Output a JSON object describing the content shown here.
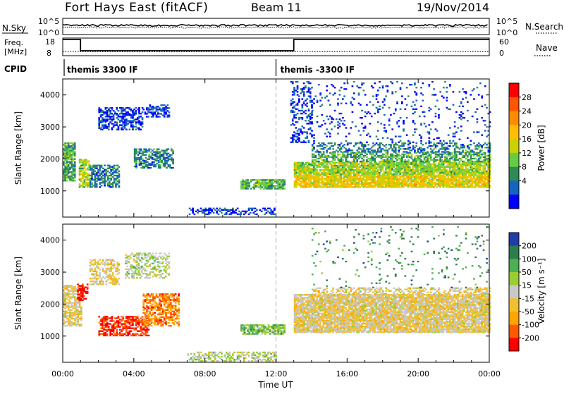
{
  "header": {
    "station": "Fort Hays East (fitACF)",
    "beam": "Beam 11",
    "date": "19/Nov/2014"
  },
  "chart_data": {
    "type": "heatmap",
    "x_tick_labels": [
      "00:00",
      "04:00",
      "08:00",
      "12:00",
      "16:00",
      "20:00",
      "00:00"
    ],
    "x_ticks_hours": [
      0,
      4,
      8,
      12,
      16,
      20,
      24
    ],
    "xlim_hours": [
      0,
      24
    ],
    "xlabel": "Time UT",
    "noise_panel": {
      "left_label": "N.Sky",
      "right_label": "N.Search",
      "left_ticks": [
        "10^5",
        "10^0"
      ],
      "right_ticks": [
        "10^5",
        "10^0"
      ]
    },
    "freq_panel": {
      "left_label_1": "Freq.",
      "left_label_2": "[MHz]",
      "right_label": "Nave",
      "left_ticks": [
        "18",
        "8"
      ],
      "right_ticks": [
        "60",
        "0"
      ],
      "ylim_freq": [
        8,
        18
      ],
      "ylim_nave": [
        0,
        60
      ],
      "freq_steps": [
        {
          "from_hr": 0.0,
          "to_hr": 1.0,
          "mhz": 17.2
        },
        {
          "from_hr": 1.0,
          "to_hr": 13.0,
          "mhz": 10.8
        },
        {
          "from_hr": 13.0,
          "to_hr": 24.0,
          "mhz": 17.2
        }
      ],
      "nave_level": 14
    },
    "cpid": {
      "label": "CPID",
      "segments": [
        {
          "start_hr": 0.0,
          "text": "themis 3300 IF"
        },
        {
          "start_hr": 12.0,
          "text": "themis -3300 IF"
        }
      ]
    },
    "power_panel": {
      "ylabel": "Slant Range [km]",
      "ylim": [
        180,
        4500
      ],
      "y_ticks": [
        1000,
        2000,
        3000,
        4000
      ],
      "colorbar_label": "Power [dB]",
      "colorbar_ticks": [
        "28",
        "24",
        "20",
        "16",
        "12",
        "8",
        "4"
      ],
      "colorbar_colors": [
        "#ff0000",
        "#ff5500",
        "#ff8c00",
        "#ffbf00",
        "#c8d200",
        "#66cc44",
        "#2e8b57",
        "#1565c0",
        "#0000ff"
      ]
    },
    "velocity_panel": {
      "ylabel": "Slant Range [km]",
      "ylim": [
        180,
        4500
      ],
      "y_ticks": [
        1000,
        2000,
        3000,
        4000
      ],
      "colorbar_label": "Velocity [m s⁻¹]",
      "colorbar_ticks": [
        "200",
        "100",
        "50",
        "15",
        "-15",
        "-50",
        "-100",
        "-200"
      ],
      "colorbar_colors": [
        "#1e3faa",
        "#2e7d4f",
        "#4caf50",
        "#9acd32",
        "#c8c8c8",
        "#f0c030",
        "#ffa500",
        "#ff5a00",
        "#ff0000"
      ]
    },
    "power_regions": [
      {
        "t0": 0.0,
        "t1": 0.7,
        "r0": 1300,
        "r1": 2500,
        "level": 3,
        "density": 0.8
      },
      {
        "t0": 0.9,
        "t1": 1.5,
        "r0": 1100,
        "r1": 2000,
        "level": 4,
        "density": 0.7
      },
      {
        "t0": 1.5,
        "t1": 3.2,
        "r0": 1100,
        "r1": 1800,
        "level": 2,
        "density": 0.6
      },
      {
        "t0": 2.0,
        "t1": 4.5,
        "r0": 2900,
        "r1": 3600,
        "level": 1,
        "density": 0.55
      },
      {
        "t0": 4.5,
        "t1": 6.0,
        "r0": 3300,
        "r1": 3700,
        "level": 1,
        "density": 0.5
      },
      {
        "t0": 4.0,
        "t1": 6.2,
        "r0": 1700,
        "r1": 2300,
        "level": 2,
        "density": 0.65
      },
      {
        "t0": 10.0,
        "t1": 12.5,
        "r0": 1050,
        "r1": 1350,
        "level": 3,
        "density": 0.8
      },
      {
        "t0": 7.0,
        "t1": 12.0,
        "r0": 250,
        "r1": 450,
        "level": 1,
        "density": 0.4
      },
      {
        "t0": 13.0,
        "t1": 24.0,
        "r0": 1100,
        "r1": 1500,
        "level": 5,
        "density": 0.9
      },
      {
        "t0": 13.0,
        "t1": 24.0,
        "r0": 1500,
        "r1": 1900,
        "level": 4,
        "density": 0.85
      },
      {
        "t0": 14.0,
        "t1": 24.0,
        "r0": 1900,
        "r1": 2200,
        "level": 3,
        "density": 0.6
      },
      {
        "t0": 14.0,
        "t1": 24.0,
        "r0": 2200,
        "r1": 2500,
        "level": 2,
        "density": 0.45
      },
      {
        "t0": 12.8,
        "t1": 14.0,
        "r0": 2500,
        "r1": 4400,
        "level": 1,
        "density": 0.3
      },
      {
        "t0": 14.0,
        "t1": 24.0,
        "r0": 2500,
        "r1": 4400,
        "level": 1,
        "density": 0.08
      }
    ],
    "velocity_regions": [
      {
        "t0": 0.0,
        "t1": 1.0,
        "r0": 1300,
        "r1": 2600,
        "level": 4,
        "density": 0.7
      },
      {
        "t0": 0.8,
        "t1": 1.4,
        "r0": 2100,
        "r1": 2600,
        "level": 0,
        "density": 0.6
      },
      {
        "t0": 1.5,
        "t1": 3.2,
        "r0": 2600,
        "r1": 3400,
        "level": 4,
        "density": 0.5
      },
      {
        "t0": 2.0,
        "t1": 4.8,
        "r0": 1000,
        "r1": 1600,
        "level": 1,
        "density": 0.6
      },
      {
        "t0": 4.5,
        "t1": 6.5,
        "r0": 1300,
        "r1": 2300,
        "level": 2,
        "density": 0.65
      },
      {
        "t0": 3.5,
        "t1": 6.0,
        "r0": 2800,
        "r1": 3600,
        "level": 5,
        "density": 0.45
      },
      {
        "t0": 7.0,
        "t1": 12.0,
        "r0": 200,
        "r1": 500,
        "level": 5,
        "density": 0.5
      },
      {
        "t0": 10.0,
        "t1": 12.5,
        "r0": 1050,
        "r1": 1350,
        "level": 6,
        "density": 0.75
      },
      {
        "t0": 13.0,
        "t1": 24.0,
        "r0": 1100,
        "r1": 2300,
        "level": 4,
        "density": 0.9
      },
      {
        "t0": 14.0,
        "t1": 24.0,
        "r0": 2300,
        "r1": 2500,
        "level": 4,
        "density": 0.4
      },
      {
        "t0": 14.0,
        "t1": 24.0,
        "r0": 2500,
        "r1": 4400,
        "level": 7,
        "density": 0.04
      }
    ]
  }
}
